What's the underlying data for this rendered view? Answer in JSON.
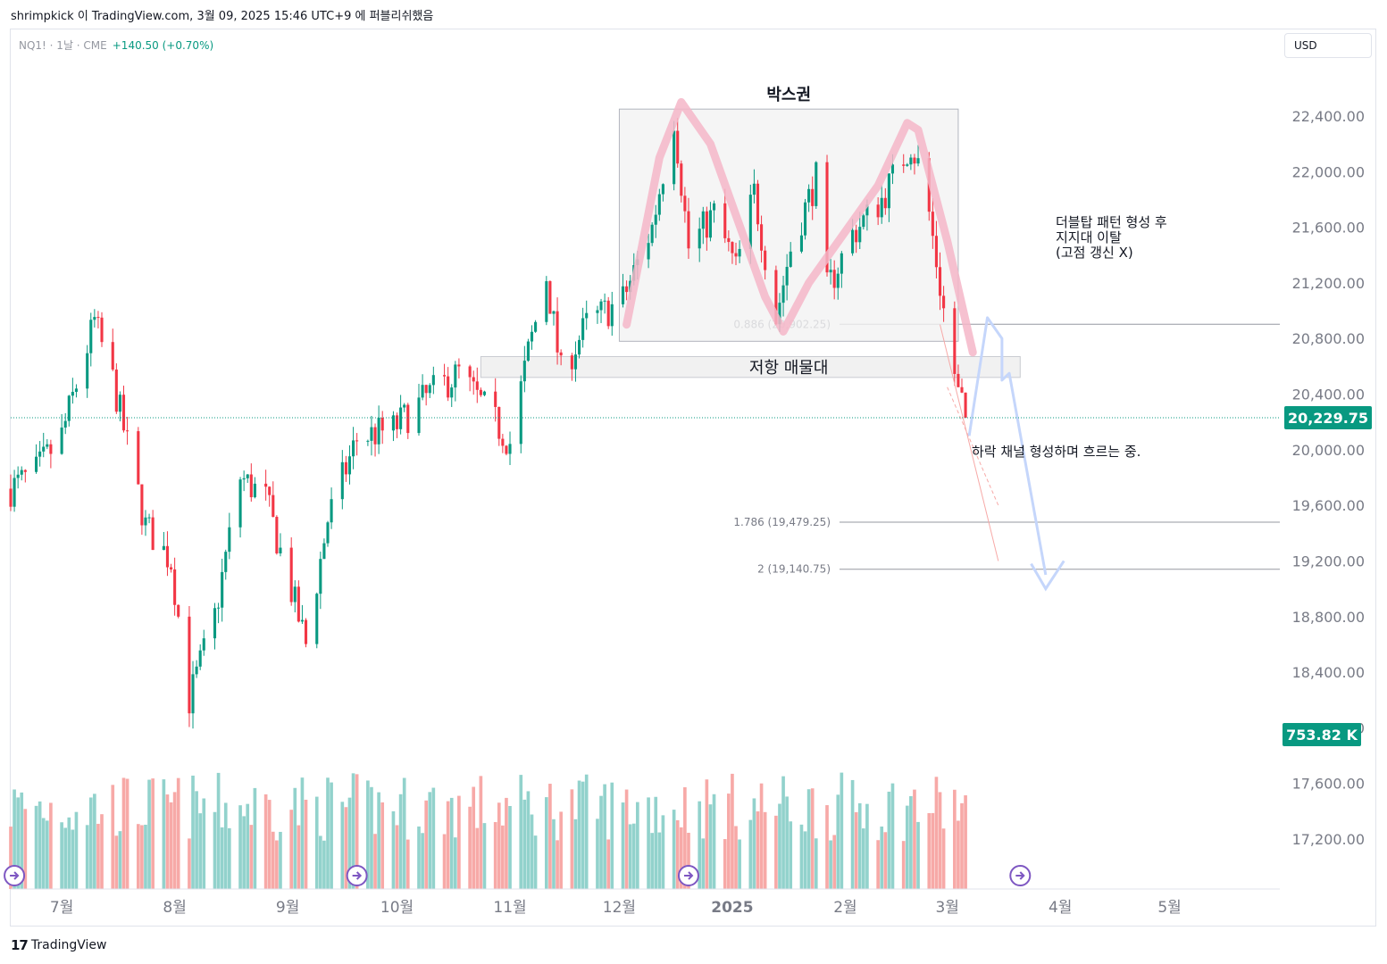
{
  "header": {
    "published_line": "shrimpkick 이 TradingView.com, 3월 09, 2025 15:46 UTC+9 에 퍼블리쉬했음"
  },
  "legend": {
    "symbol": "NQ1! · 1날 · CME",
    "change": "+140.50 (+0.70%)"
  },
  "currency_button": "USD",
  "footer": {
    "brand": "TradingView",
    "logo_glyph": "17"
  },
  "colors": {
    "up": "#089981",
    "down": "#f23645",
    "up_volume": "#92d2cc",
    "down_volume": "#f7a9a7",
    "pink": "#f4b6c8",
    "blue": "#c5d6fb",
    "box_fill": "#f2f2f2"
  },
  "chart_data": {
    "type": "candlestick",
    "y_ticks": [
      "17,200.00",
      "17,600.00",
      "18,000.00",
      "18,400.00",
      "18,800.00",
      "19,200.00",
      "19,600.00",
      "20,000.00",
      "20,400.00",
      "20,800.00",
      "21,200.00",
      "21,600.00",
      "22,000.00",
      "22,400.00"
    ],
    "x_ticks": [
      {
        "label": "7월",
        "month": "2024-07"
      },
      {
        "label": "8월",
        "month": "2024-08"
      },
      {
        "label": "9월",
        "month": "2024-09"
      },
      {
        "label": "10월",
        "month": "2024-10"
      },
      {
        "label": "11월",
        "month": "2024-11"
      },
      {
        "label": "12월",
        "month": "2024-12"
      },
      {
        "label": "2025",
        "month": "2025-01"
      },
      {
        "label": "2월",
        "month": "2025-02"
      },
      {
        "label": "3월",
        "month": "2025-03"
      },
      {
        "label": "4월",
        "month": "2025-04"
      },
      {
        "label": "5월",
        "month": "2025-05"
      }
    ],
    "ylim": [
      16980,
      22850
    ],
    "date_range": [
      "2024-06-17",
      "2025-05-31"
    ],
    "last_price": "20,229.75",
    "last_value": 20229.75,
    "volume_label": "753.82 K",
    "annotations": {
      "box_title": "박스권",
      "resistance_zone": "저항 매물대",
      "pattern_note": [
        "더블탑 패턴 형성 후",
        "지지대 이탈",
        "(고점 갱신 X)"
      ],
      "channel_note": "하락 채널 형성하며 흐르는 중."
    },
    "fib_levels": [
      {
        "label": "0.886 (20,902.25)",
        "value": 20902.25
      },
      {
        "label": "1.786 (19,479.25)",
        "value": 19479.25
      },
      {
        "label": "2 (19,140.75)",
        "value": 19140.75
      }
    ],
    "box_range": {
      "start": "2024-12-01",
      "end": "2025-03-04",
      "high": 22450,
      "low": 20780
    },
    "zone_range": {
      "start": "2024-10-24",
      "end": "2025-03-21",
      "high": 20670,
      "low": 20520
    },
    "path": [
      [
        "2024-06-17",
        19720
      ],
      [
        "2024-06-24",
        19840
      ],
      [
        "2024-07-01",
        20100
      ],
      [
        "2024-07-10",
        20920
      ],
      [
        "2024-07-15",
        20500
      ],
      [
        "2024-07-24",
        19450
      ],
      [
        "2024-07-31",
        19200
      ],
      [
        "2024-08-05",
        18200
      ],
      [
        "2024-08-12",
        18800
      ],
      [
        "2024-08-19",
        19800
      ],
      [
        "2024-08-26",
        19650
      ],
      [
        "2024-09-06",
        18600
      ],
      [
        "2024-09-12",
        19500
      ],
      [
        "2024-09-20",
        20080
      ],
      [
        "2024-09-30",
        20150
      ],
      [
        "2024-10-10",
        20400
      ],
      [
        "2024-10-18",
        20550
      ],
      [
        "2024-10-25",
        20300
      ],
      [
        "2024-11-01",
        20050
      ],
      [
        "2024-11-06",
        20700
      ],
      [
        "2024-11-11",
        21250
      ],
      [
        "2024-11-15",
        20550
      ],
      [
        "2024-11-22",
        20900
      ],
      [
        "2024-12-02",
        21080
      ],
      [
        "2024-12-10",
        21600
      ],
      [
        "2024-12-16",
        22400
      ],
      [
        "2024-12-20",
        21450
      ],
      [
        "2024-12-27",
        21700
      ],
      [
        "2025-01-02",
        21300
      ],
      [
        "2025-01-07",
        21850
      ],
      [
        "2025-01-13",
        20950
      ],
      [
        "2025-01-17",
        21450
      ],
      [
        "2025-01-24",
        21950
      ],
      [
        "2025-01-27",
        21150
      ],
      [
        "2025-02-03",
        21550
      ],
      [
        "2025-02-11",
        21800
      ],
      [
        "2025-02-19",
        22200
      ],
      [
        "2025-02-21",
        22050
      ],
      [
        "2025-02-24",
        21700
      ],
      [
        "2025-02-28",
        21000
      ],
      [
        "2025-03-04",
        20400
      ],
      [
        "2025-03-07",
        20229.75
      ]
    ]
  }
}
